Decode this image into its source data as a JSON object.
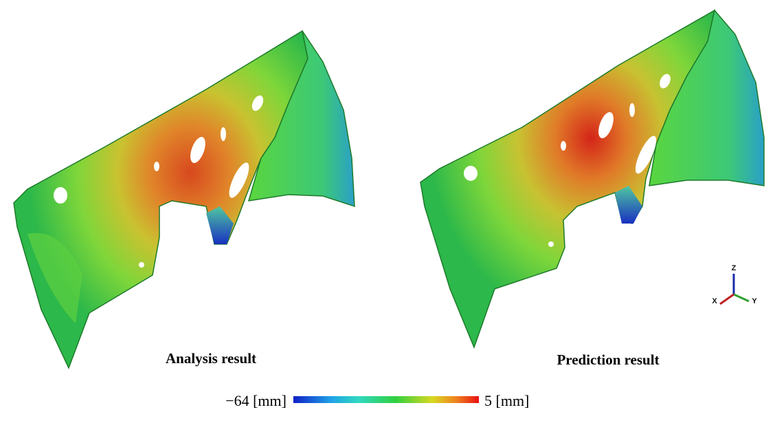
{
  "panels": [
    {
      "caption": "Analysis result"
    },
    {
      "caption": "Prediction result"
    }
  ],
  "colorbar": {
    "min_label": "−64 [mm]",
    "max_label": "5 [mm]"
  },
  "axes_triad": {
    "z": "Z",
    "x": "X",
    "y": "Y"
  }
}
